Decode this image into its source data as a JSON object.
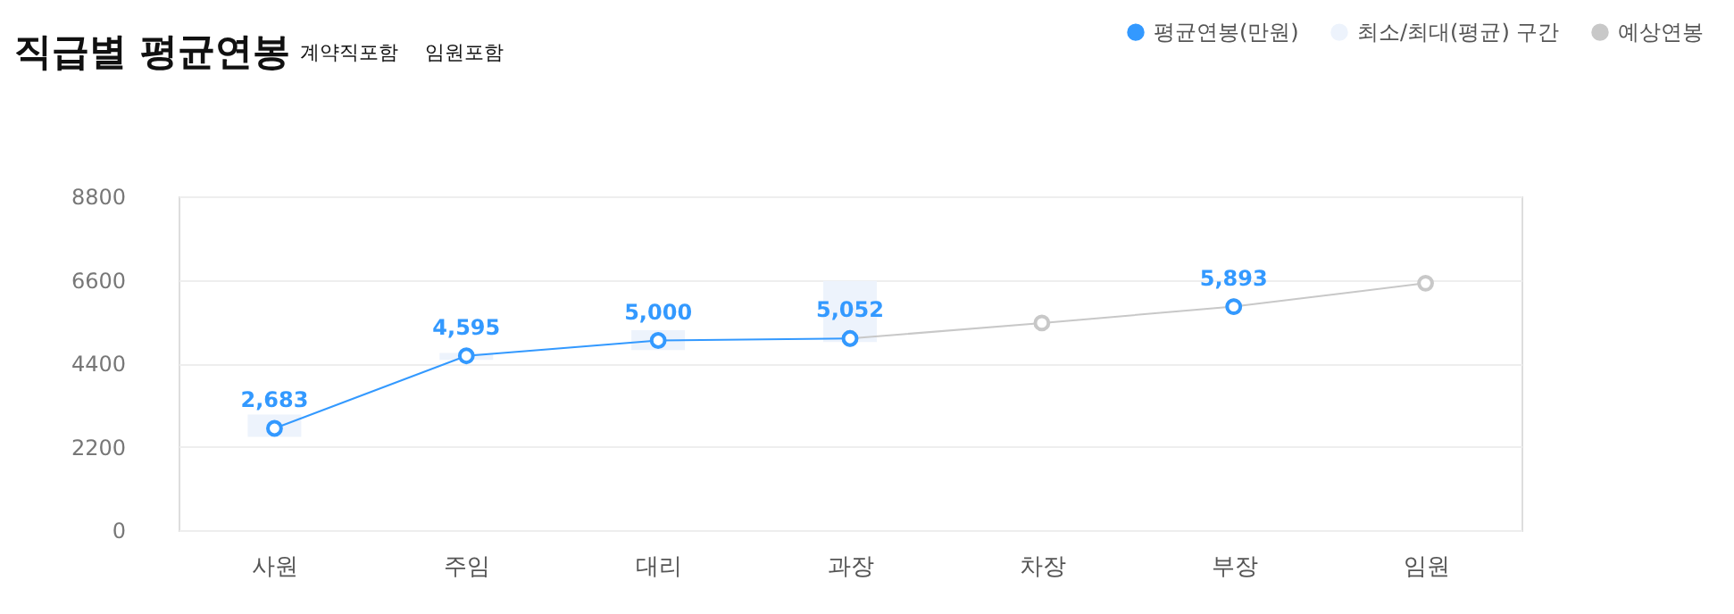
{
  "chart_data": {
    "type": "line",
    "title": "직급별 평균연봉",
    "annotations": [
      "계약직포함",
      "임원포함"
    ],
    "categories": [
      "사원",
      "주임",
      "대리",
      "과장",
      "차장",
      "부장",
      "임원"
    ],
    "series": [
      {
        "name": "평균연봉(만원)",
        "color": "#3399ff",
        "values": [
          2683,
          4595,
          5000,
          5052,
          null,
          5893,
          null
        ],
        "value_labels": [
          "2,683",
          "4,595",
          "5,000",
          "5,052",
          null,
          "5,893",
          null
        ]
      },
      {
        "name": "최소/최대(평균) 구간",
        "type": "bar",
        "color": "#edf3fc",
        "base": [
          2460,
          4490,
          4750,
          4960,
          null,
          null,
          null
        ],
        "values": [
          590,
          180,
          520,
          1610,
          null,
          null,
          null
        ]
      },
      {
        "name": "예상연봉",
        "color": "#c8c8c8",
        "values": [
          null,
          null,
          null,
          5052,
          5460,
          5893,
          6510
        ]
      }
    ],
    "ylim": [
      0,
      8800
    ],
    "yticks": [
      0,
      2200,
      4400,
      6600,
      8800
    ],
    "grid": "y",
    "legend": "top right",
    "marker": "circle"
  }
}
